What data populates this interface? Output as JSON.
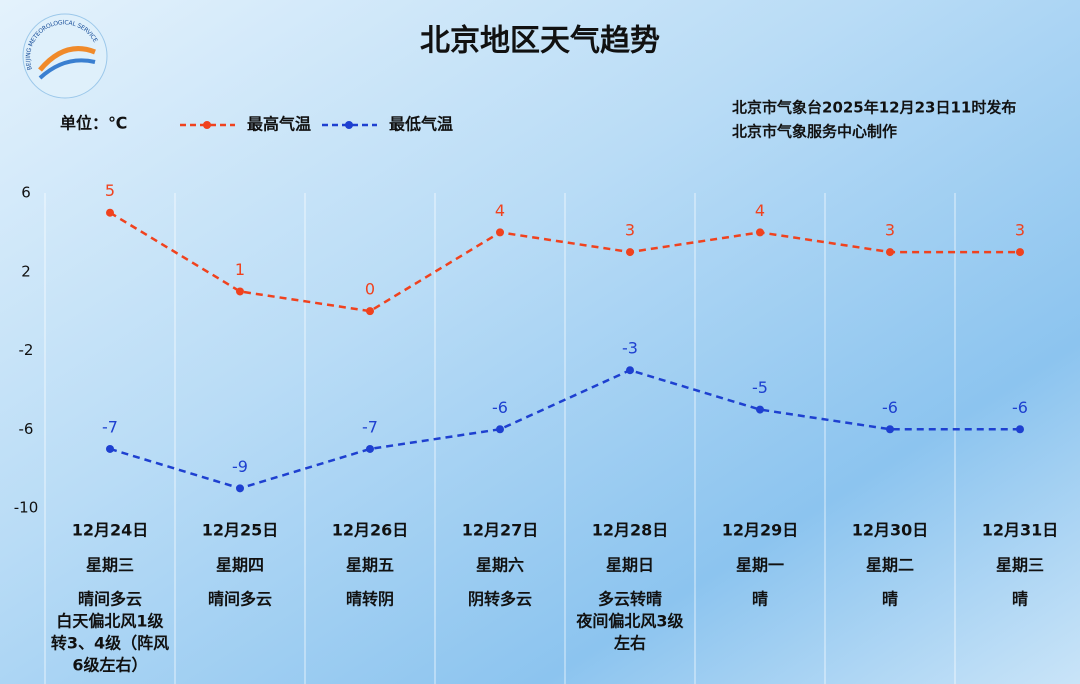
{
  "chart_data": {
    "type": "line",
    "title": "北京地区天气趋势",
    "unit_label": "单位：℃",
    "logo_text": "BEIJING METEOROLOGICAL SERVICE",
    "issuer": [
      "北京市气象台2025年12月23日11时发布",
      "北京市气象服务中心制作"
    ],
    "categories": [
      "12月24日",
      "12月25日",
      "12月26日",
      "12月27日",
      "12月28日",
      "12月29日",
      "12月30日",
      "12月31日"
    ],
    "weekdays": [
      "星期三",
      "星期四",
      "星期五",
      "星期六",
      "星期日",
      "星期一",
      "星期二",
      "星期三"
    ],
    "weather": [
      [
        "晴间多云",
        "白天偏北风1级",
        "转3、4级（阵风",
        "6级左右）"
      ],
      [
        "晴间多云"
      ],
      [
        "晴转阴"
      ],
      [
        "阴转多云"
      ],
      [
        "多云转晴",
        "夜间偏北风3级",
        "左右"
      ],
      [
        "晴"
      ],
      [
        "晴"
      ],
      [
        "晴"
      ]
    ],
    "series": [
      {
        "name": "最高气温",
        "color": "#f0421e",
        "values": [
          5,
          1,
          0,
          4,
          3,
          4,
          3,
          3
        ]
      },
      {
        "name": "最低气温",
        "color": "#1e40d0",
        "values": [
          -7,
          -9,
          -7,
          -6,
          -3,
          -5,
          -6,
          -6
        ]
      }
    ],
    "ylim": [
      -10,
      6
    ],
    "yticks": [
      6,
      2,
      -2,
      -6,
      -10
    ]
  }
}
